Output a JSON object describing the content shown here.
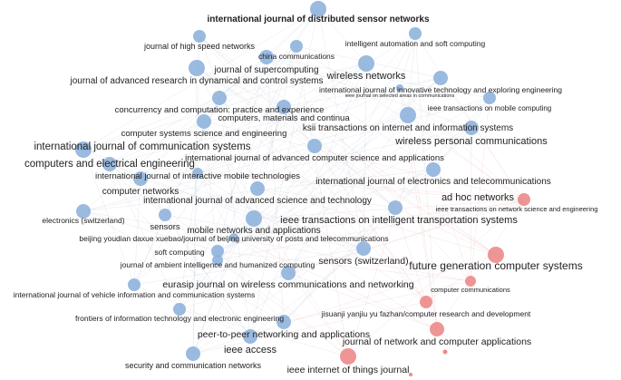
{
  "colors": {
    "blue_cluster": "#8fb3dc",
    "red_cluster": "#ec8a8a",
    "edge_blue": "#b8c4d8",
    "edge_red": "#e7b7b7"
  },
  "nodes": [
    {
      "label": "international journal of distributed sensor networks",
      "cluster": "blue",
      "weight": 3
    },
    {
      "label": "journal of high speed networks",
      "cluster": "blue",
      "weight": 2
    },
    {
      "label": "china communications",
      "cluster": "blue",
      "weight": 2
    },
    {
      "label": "intelligent automation and soft computing",
      "cluster": "blue",
      "weight": 2
    },
    {
      "label": "journal of supercomputing",
      "cluster": "blue",
      "weight": 2
    },
    {
      "label": "wireless networks",
      "cluster": "blue",
      "weight": 3
    },
    {
      "label": "journal of advanced research in dynamical and control systems",
      "cluster": "blue",
      "weight": 3
    },
    {
      "label": "international journal of innovative technology and exploring engineering",
      "cluster": "blue",
      "weight": 2
    },
    {
      "label": "ieee journal on selected areas in communications",
      "cluster": "blue",
      "weight": 1
    },
    {
      "label": "ieee transactions on mobile computing",
      "cluster": "blue",
      "weight": 2
    },
    {
      "label": "concurrency and computation: practice and experience",
      "cluster": "blue",
      "weight": 2
    },
    {
      "label": "computers, materials and continua",
      "cluster": "blue",
      "weight": 2
    },
    {
      "label": "computer systems science and engineering",
      "cluster": "blue",
      "weight": 2
    },
    {
      "label": "ksii transactions on internet and information systems",
      "cluster": "blue",
      "weight": 3
    },
    {
      "label": "wireless personal communications",
      "cluster": "blue",
      "weight": 3
    },
    {
      "label": "international journal of communication systems",
      "cluster": "blue",
      "weight": 4
    },
    {
      "label": "international journal of advanced computer science and applications",
      "cluster": "blue",
      "weight": 3
    },
    {
      "label": "computers and electrical engineering",
      "cluster": "blue",
      "weight": 3
    },
    {
      "label": "international journal of interactive mobile technologies",
      "cluster": "blue",
      "weight": 2
    },
    {
      "label": "international journal of electronics and telecommunications",
      "cluster": "blue",
      "weight": 3
    },
    {
      "label": "computer networks",
      "cluster": "blue",
      "weight": 3
    },
    {
      "label": "international journal of advanced science and technology",
      "cluster": "blue",
      "weight": 3
    },
    {
      "label": "ad hoc networks",
      "cluster": "red",
      "weight": 3
    },
    {
      "label": "ieee transactions on network science and engineering",
      "cluster": "red",
      "weight": 1
    },
    {
      "label": "electronics (switzerland)",
      "cluster": "blue",
      "weight": 2
    },
    {
      "label": "sensors",
      "cluster": "blue",
      "weight": 2
    },
    {
      "label": "ieee transactions on intelligent transportation systems",
      "cluster": "blue",
      "weight": 3
    },
    {
      "label": "mobile networks and applications",
      "cluster": "blue",
      "weight": 3
    },
    {
      "label": "beijing youdian daxue xuebao/journal of beijing university of posts and telecommunications",
      "cluster": "blue",
      "weight": 2
    },
    {
      "label": "soft computing",
      "cluster": "blue",
      "weight": 2
    },
    {
      "label": "sensors (switzerland)",
      "cluster": "blue",
      "weight": 3
    },
    {
      "label": "future generation computer systems",
      "cluster": "red",
      "weight": 4
    },
    {
      "label": "journal of ambient intelligence and humanized computing",
      "cluster": "blue",
      "weight": 2
    },
    {
      "label": "eurasip journal on wireless communications and networking",
      "cluster": "blue",
      "weight": 3
    },
    {
      "label": "computer communications",
      "cluster": "red",
      "weight": 1
    },
    {
      "label": "international journal of vehicle information and communication systems",
      "cluster": "blue",
      "weight": 2
    },
    {
      "label": "jisuanji yanjiu yu fazhan/computer research and development",
      "cluster": "red",
      "weight": 2
    },
    {
      "label": "frontiers of information technology and electronic engineering",
      "cluster": "blue",
      "weight": 2
    },
    {
      "label": "journal of network and computer applications",
      "cluster": "red",
      "weight": 3
    },
    {
      "label": "peer-to-peer networking and applications",
      "cluster": "blue",
      "weight": 3
    },
    {
      "label": "ieee access",
      "cluster": "blue",
      "weight": 3
    },
    {
      "label": "security and communication networks",
      "cluster": "blue",
      "weight": 2
    },
    {
      "label": "ieee internet of things journal",
      "cluster": "red",
      "weight": 3
    }
  ]
}
